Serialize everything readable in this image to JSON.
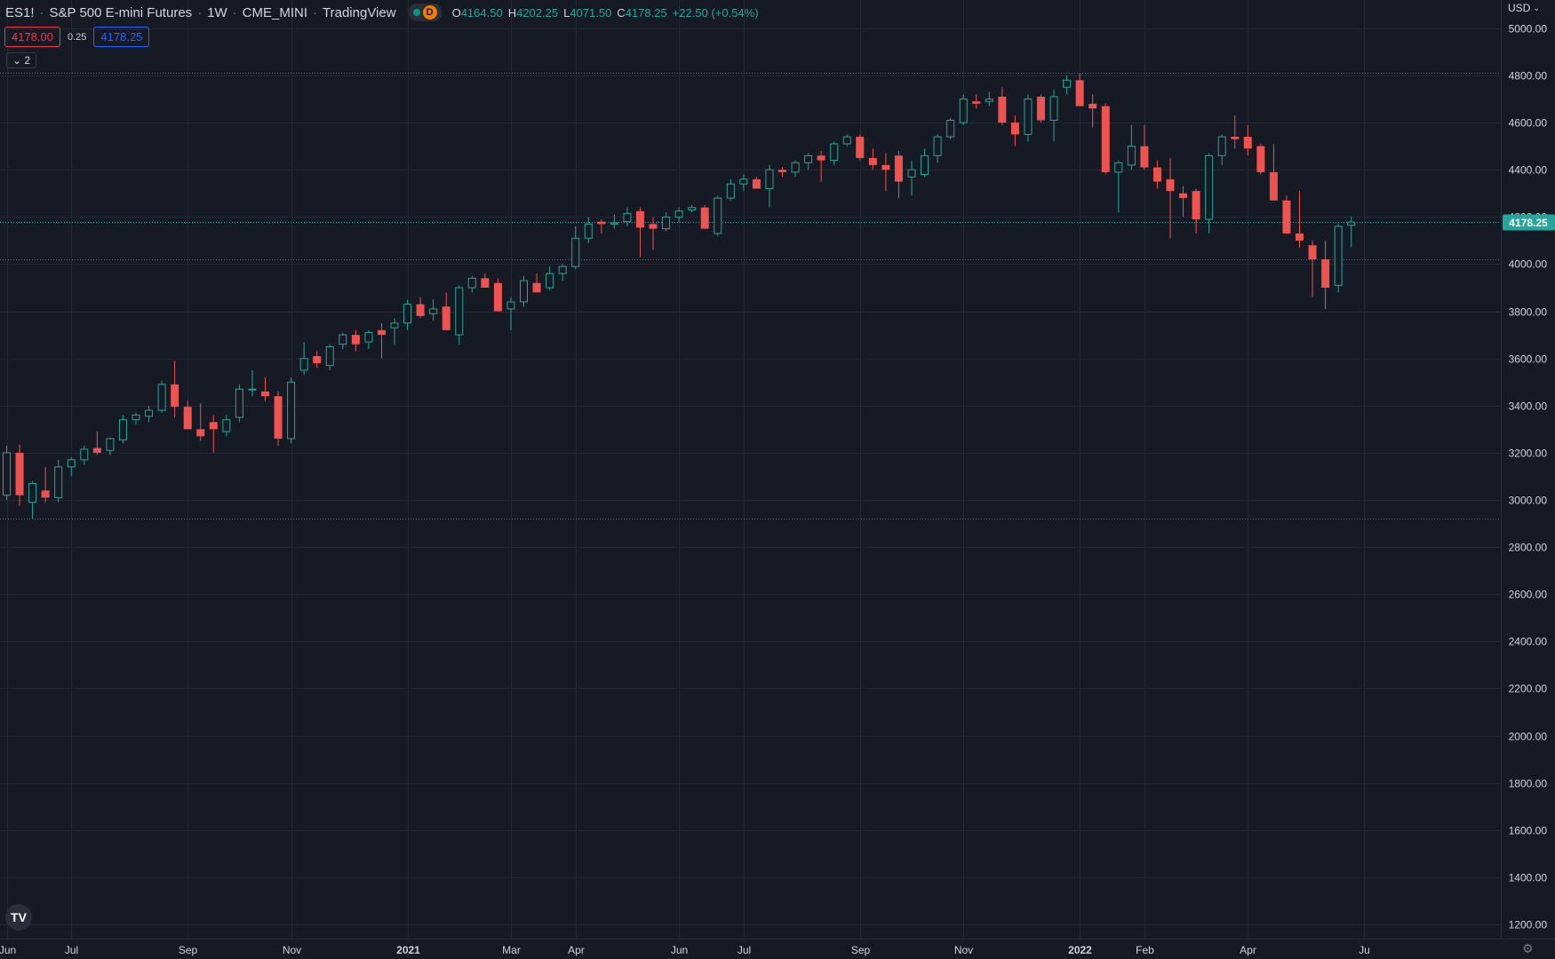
{
  "header": {
    "symbol": "ES1!",
    "name": "S&P 500 E-mini Futures",
    "interval": "1W",
    "exchange": "CME_MINI",
    "source": "TradingView",
    "market_status_badge": "D",
    "ohlc": {
      "o_label": "O",
      "o": "4164.50",
      "h_label": "H",
      "h": "4202.25",
      "l_label": "L",
      "l": "4071.50",
      "c_label": "C",
      "c": "4178.25",
      "change": "+22.50 (+0.54%)"
    }
  },
  "quote": {
    "bid": "4178.00",
    "spread": "0.25",
    "ask": "4178.25"
  },
  "indicators_toggle": "2",
  "price_axis": {
    "currency": "USD"
  },
  "current_price_label": "4178.25",
  "colors": {
    "background": "#161a25",
    "grid": "#232733",
    "up": "#26a69a",
    "down": "#ef5350",
    "text": "#d1d4dc",
    "price_tag": "#26a69a"
  },
  "chart_data": {
    "type": "candlestick",
    "interval": "1W",
    "ylim": [
      1140,
      5120
    ],
    "y_ticks": [
      1200,
      1400,
      1600,
      1800,
      2000,
      2200,
      2400,
      2600,
      2800,
      3000,
      3200,
      3400,
      3600,
      3800,
      4000,
      4200,
      4400,
      4600,
      4800,
      5000
    ],
    "x_ticks": [
      {
        "label": "Jun",
        "bar": 0
      },
      {
        "label": "Jul",
        "bar": 5
      },
      {
        "label": "Sep",
        "bar": 14
      },
      {
        "label": "Nov",
        "bar": 22
      },
      {
        "label": "2021",
        "bar": 31
      },
      {
        "label": "Mar",
        "bar": 39
      },
      {
        "label": "Apr",
        "bar": 44
      },
      {
        "label": "Jun",
        "bar": 52
      },
      {
        "label": "Jul",
        "bar": 57
      },
      {
        "label": "Sep",
        "bar": 66
      },
      {
        "label": "Nov",
        "bar": 74
      },
      {
        "label": "2022",
        "bar": 83
      },
      {
        "label": "Feb",
        "bar": 88
      },
      {
        "label": "Apr",
        "bar": 96
      },
      {
        "label": "Ju",
        "bar": 105
      }
    ],
    "horizontal_levels": [
      4810,
      4020,
      2920
    ],
    "current_price": 4178.25,
    "candles": [
      {
        "o": 3020,
        "h": 3230,
        "l": 3000,
        "c": 3200
      },
      {
        "o": 3200,
        "h": 3235,
        "l": 2975,
        "c": 3020
      },
      {
        "o": 2990,
        "h": 3080,
        "l": 2920,
        "c": 3070
      },
      {
        "o": 3040,
        "h": 3140,
        "l": 2990,
        "c": 3010
      },
      {
        "o": 3010,
        "h": 3170,
        "l": 2990,
        "c": 3140
      },
      {
        "o": 3140,
        "h": 3180,
        "l": 3100,
        "c": 3170
      },
      {
        "o": 3170,
        "h": 3230,
        "l": 3150,
        "c": 3215
      },
      {
        "o": 3220,
        "h": 3290,
        "l": 3190,
        "c": 3200
      },
      {
        "o": 3210,
        "h": 3265,
        "l": 3190,
        "c": 3260
      },
      {
        "o": 3255,
        "h": 3360,
        "l": 3240,
        "c": 3340
      },
      {
        "o": 3340,
        "h": 3370,
        "l": 3320,
        "c": 3360
      },
      {
        "o": 3355,
        "h": 3400,
        "l": 3330,
        "c": 3380
      },
      {
        "o": 3380,
        "h": 3505,
        "l": 3370,
        "c": 3490
      },
      {
        "o": 3490,
        "h": 3590,
        "l": 3350,
        "c": 3395
      },
      {
        "o": 3395,
        "h": 3420,
        "l": 3310,
        "c": 3300
      },
      {
        "o": 3300,
        "h": 3410,
        "l": 3250,
        "c": 3270
      },
      {
        "o": 3330,
        "h": 3360,
        "l": 3200,
        "c": 3300
      },
      {
        "o": 3290,
        "h": 3360,
        "l": 3270,
        "c": 3340
      },
      {
        "o": 3350,
        "h": 3490,
        "l": 3330,
        "c": 3470
      },
      {
        "o": 3470,
        "h": 3550,
        "l": 3440,
        "c": 3470
      },
      {
        "o": 3460,
        "h": 3520,
        "l": 3420,
        "c": 3440
      },
      {
        "o": 3440,
        "h": 3460,
        "l": 3230,
        "c": 3260
      },
      {
        "o": 3260,
        "h": 3520,
        "l": 3240,
        "c": 3500
      },
      {
        "o": 3550,
        "h": 3670,
        "l": 3530,
        "c": 3600
      },
      {
        "o": 3610,
        "h": 3630,
        "l": 3560,
        "c": 3580
      },
      {
        "o": 3570,
        "h": 3660,
        "l": 3550,
        "c": 3650
      },
      {
        "o": 3660,
        "h": 3710,
        "l": 3640,
        "c": 3700
      },
      {
        "o": 3700,
        "h": 3720,
        "l": 3630,
        "c": 3660
      },
      {
        "o": 3670,
        "h": 3720,
        "l": 3640,
        "c": 3710
      },
      {
        "o": 3720,
        "h": 3750,
        "l": 3600,
        "c": 3700
      },
      {
        "o": 3730,
        "h": 3770,
        "l": 3660,
        "c": 3750
      },
      {
        "o": 3750,
        "h": 3850,
        "l": 3720,
        "c": 3830
      },
      {
        "o": 3830,
        "h": 3860,
        "l": 3770,
        "c": 3780
      },
      {
        "o": 3790,
        "h": 3850,
        "l": 3760,
        "c": 3810
      },
      {
        "o": 3820,
        "h": 3880,
        "l": 3720,
        "c": 3720
      },
      {
        "o": 3700,
        "h": 3910,
        "l": 3660,
        "c": 3900
      },
      {
        "o": 3900,
        "h": 3950,
        "l": 3880,
        "c": 3940
      },
      {
        "o": 3940,
        "h": 3960,
        "l": 3900,
        "c": 3900
      },
      {
        "o": 3920,
        "h": 3940,
        "l": 3800,
        "c": 3800
      },
      {
        "o": 3810,
        "h": 3860,
        "l": 3720,
        "c": 3840
      },
      {
        "o": 3840,
        "h": 3950,
        "l": 3820,
        "c": 3930
      },
      {
        "o": 3920,
        "h": 3960,
        "l": 3880,
        "c": 3880
      },
      {
        "o": 3900,
        "h": 3990,
        "l": 3890,
        "c": 3960
      },
      {
        "o": 3960,
        "h": 4000,
        "l": 3930,
        "c": 3990
      },
      {
        "o": 3990,
        "h": 4160,
        "l": 3980,
        "c": 4110
      },
      {
        "o": 4110,
        "h": 4200,
        "l": 4090,
        "c": 4170
      },
      {
        "o": 4180,
        "h": 4190,
        "l": 4130,
        "c": 4170
      },
      {
        "o": 4170,
        "h": 4210,
        "l": 4150,
        "c": 4175
      },
      {
        "o": 4180,
        "h": 4240,
        "l": 4160,
        "c": 4215
      },
      {
        "o": 4225,
        "h": 4240,
        "l": 4030,
        "c": 4155
      },
      {
        "o": 4170,
        "h": 4200,
        "l": 4060,
        "c": 4150
      },
      {
        "o": 4150,
        "h": 4220,
        "l": 4140,
        "c": 4200
      },
      {
        "o": 4200,
        "h": 4240,
        "l": 4180,
        "c": 4225
      },
      {
        "o": 4230,
        "h": 4250,
        "l": 4220,
        "c": 4240
      },
      {
        "o": 4240,
        "h": 4250,
        "l": 4150,
        "c": 4150
      },
      {
        "o": 4130,
        "h": 4290,
        "l": 4120,
        "c": 4280
      },
      {
        "o": 4280,
        "h": 4360,
        "l": 4270,
        "c": 4340
      },
      {
        "o": 4340,
        "h": 4380,
        "l": 4310,
        "c": 4360
      },
      {
        "o": 4360,
        "h": 4370,
        "l": 4320,
        "c": 4320
      },
      {
        "o": 4320,
        "h": 4420,
        "l": 4240,
        "c": 4400
      },
      {
        "o": 4400,
        "h": 4410,
        "l": 4370,
        "c": 4390
      },
      {
        "o": 4390,
        "h": 4440,
        "l": 4370,
        "c": 4430
      },
      {
        "o": 4430,
        "h": 4470,
        "l": 4400,
        "c": 4460
      },
      {
        "o": 4460,
        "h": 4480,
        "l": 4350,
        "c": 4440
      },
      {
        "o": 4440,
        "h": 4520,
        "l": 4420,
        "c": 4510
      },
      {
        "o": 4510,
        "h": 4550,
        "l": 4500,
        "c": 4540
      },
      {
        "o": 4540,
        "h": 4550,
        "l": 4440,
        "c": 4450
      },
      {
        "o": 4450,
        "h": 4490,
        "l": 4400,
        "c": 4420
      },
      {
        "o": 4420,
        "h": 4470,
        "l": 4310,
        "c": 4400
      },
      {
        "o": 4460,
        "h": 4480,
        "l": 4280,
        "c": 4350
      },
      {
        "o": 4370,
        "h": 4440,
        "l": 4290,
        "c": 4400
      },
      {
        "o": 4380,
        "h": 4490,
        "l": 4370,
        "c": 4460
      },
      {
        "o": 4460,
        "h": 4550,
        "l": 4430,
        "c": 4540
      },
      {
        "o": 4540,
        "h": 4620,
        "l": 4530,
        "c": 4610
      },
      {
        "o": 4600,
        "h": 4720,
        "l": 4590,
        "c": 4700
      },
      {
        "o": 4690,
        "h": 4720,
        "l": 4660,
        "c": 4680
      },
      {
        "o": 4690,
        "h": 4730,
        "l": 4670,
        "c": 4700
      },
      {
        "o": 4710,
        "h": 4750,
        "l": 4590,
        "c": 4600
      },
      {
        "o": 4600,
        "h": 4630,
        "l": 4500,
        "c": 4550
      },
      {
        "o": 4550,
        "h": 4720,
        "l": 4520,
        "c": 4700
      },
      {
        "o": 4710,
        "h": 4720,
        "l": 4600,
        "c": 4610
      },
      {
        "o": 4610,
        "h": 4740,
        "l": 4520,
        "c": 4710
      },
      {
        "o": 4750,
        "h": 4800,
        "l": 4720,
        "c": 4780
      },
      {
        "o": 4780,
        "h": 4810,
        "l": 4670,
        "c": 4670
      },
      {
        "o": 4680,
        "h": 4720,
        "l": 4580,
        "c": 4660
      },
      {
        "o": 4670,
        "h": 4680,
        "l": 4380,
        "c": 4390
      },
      {
        "o": 4390,
        "h": 4440,
        "l": 4220,
        "c": 4430
      },
      {
        "o": 4420,
        "h": 4590,
        "l": 4400,
        "c": 4500
      },
      {
        "o": 4500,
        "h": 4590,
        "l": 4400,
        "c": 4410
      },
      {
        "o": 4410,
        "h": 4440,
        "l": 4320,
        "c": 4350
      },
      {
        "o": 4360,
        "h": 4450,
        "l": 4110,
        "c": 4310
      },
      {
        "o": 4300,
        "h": 4330,
        "l": 4200,
        "c": 4280
      },
      {
        "o": 4310,
        "h": 4320,
        "l": 4130,
        "c": 4190
      },
      {
        "o": 4190,
        "h": 4470,
        "l": 4130,
        "c": 4460
      },
      {
        "o": 4460,
        "h": 4550,
        "l": 4420,
        "c": 4540
      },
      {
        "o": 4540,
        "h": 4630,
        "l": 4490,
        "c": 4530
      },
      {
        "o": 4540,
        "h": 4590,
        "l": 4460,
        "c": 4490
      },
      {
        "o": 4500,
        "h": 4510,
        "l": 4380,
        "c": 4390
      },
      {
        "o": 4390,
        "h": 4510,
        "l": 4270,
        "c": 4270
      },
      {
        "o": 4270,
        "h": 4290,
        "l": 4130,
        "c": 4130
      },
      {
        "o": 4130,
        "h": 4310,
        "l": 4070,
        "c": 4100
      },
      {
        "o": 4080,
        "h": 4100,
        "l": 3860,
        "c": 4020
      },
      {
        "o": 4020,
        "h": 4100,
        "l": 3810,
        "c": 3900
      },
      {
        "o": 3910,
        "h": 4170,
        "l": 3880,
        "c": 4160
      },
      {
        "o": 4164.5,
        "h": 4202.25,
        "l": 4071.5,
        "c": 4178.25
      }
    ]
  }
}
